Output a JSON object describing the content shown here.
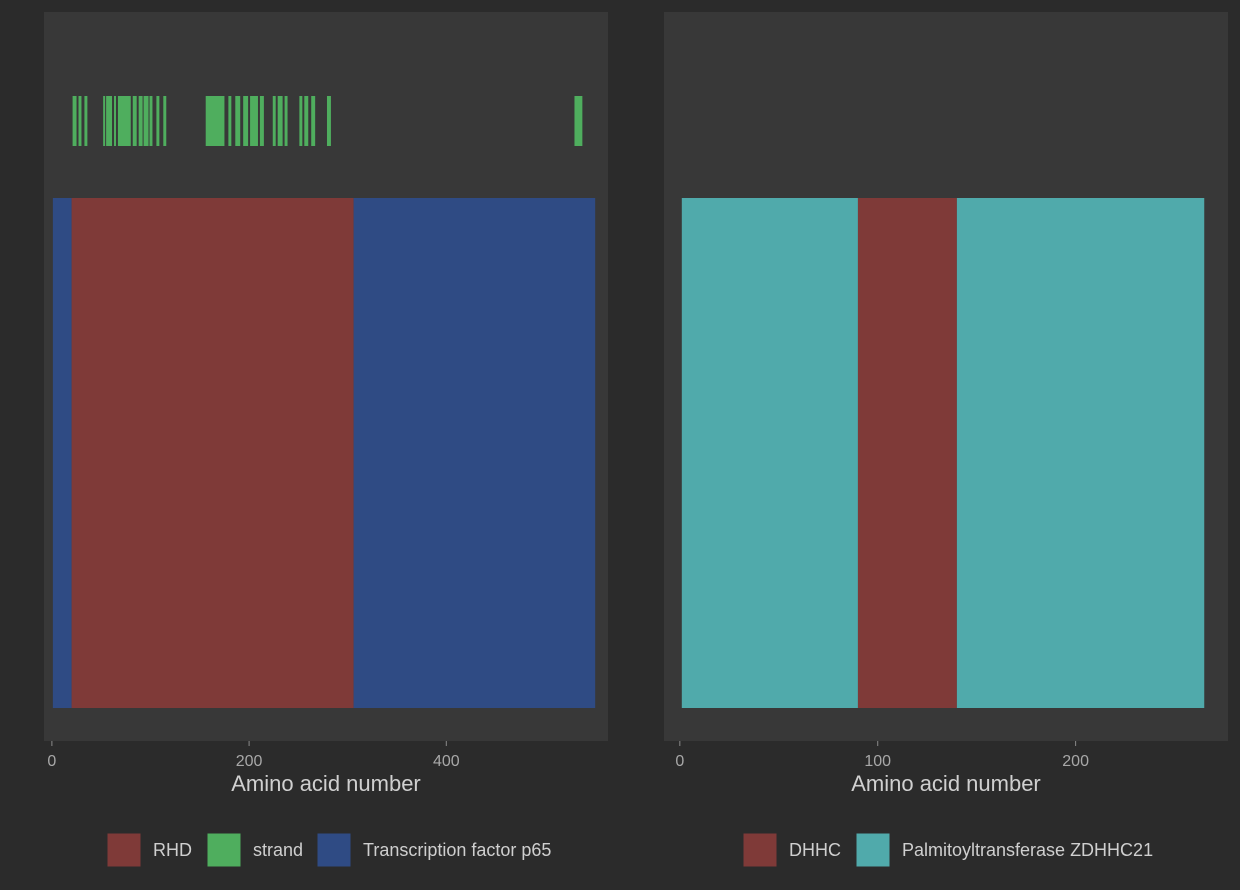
{
  "background": "#2b2b2b",
  "panel_color": "#383838",
  "chart_data": [
    {
      "type": "bar",
      "xlabel": "Amino acid number",
      "xlim": [
        -8,
        564
      ],
      "xticks": [
        0,
        200,
        400
      ],
      "grid": false,
      "legend_position": "bottom",
      "legend": [
        {
          "label": "RHD",
          "color": "#7f3a38"
        },
        {
          "label": "strand",
          "color": "#4fae5e"
        },
        {
          "label": "Transcription factor p65",
          "color": "#2f4b84"
        }
      ],
      "domains": [
        {
          "name": "Transcription factor p65",
          "start": 1,
          "end": 20,
          "color": "#2f4b84"
        },
        {
          "name": "RHD",
          "start": 20,
          "end": 306,
          "color": "#7f3a38"
        },
        {
          "name": "Transcription factor p65",
          "start": 306,
          "end": 551,
          "color": "#2f4b84"
        }
      ],
      "strands": [
        {
          "start": 21,
          "end": 25
        },
        {
          "start": 27,
          "end": 30
        },
        {
          "start": 33,
          "end": 36
        },
        {
          "start": 52,
          "end": 54
        },
        {
          "start": 55,
          "end": 61
        },
        {
          "start": 63,
          "end": 65
        },
        {
          "start": 67,
          "end": 80
        },
        {
          "start": 82,
          "end": 86
        },
        {
          "start": 88,
          "end": 92
        },
        {
          "start": 93,
          "end": 98
        },
        {
          "start": 99,
          "end": 102
        },
        {
          "start": 106,
          "end": 109
        },
        {
          "start": 113,
          "end": 116
        },
        {
          "start": 156,
          "end": 175
        },
        {
          "start": 179,
          "end": 182
        },
        {
          "start": 186,
          "end": 191
        },
        {
          "start": 194,
          "end": 199
        },
        {
          "start": 201,
          "end": 209
        },
        {
          "start": 211,
          "end": 215
        },
        {
          "start": 224,
          "end": 227
        },
        {
          "start": 229,
          "end": 234
        },
        {
          "start": 236,
          "end": 239
        },
        {
          "start": 251,
          "end": 254
        },
        {
          "start": 256,
          "end": 260
        },
        {
          "start": 263,
          "end": 267
        },
        {
          "start": 279,
          "end": 283
        },
        {
          "start": 530,
          "end": 538
        }
      ]
    },
    {
      "type": "bar",
      "xlabel": "Amino acid number",
      "xlim": [
        -8,
        277
      ],
      "xticks": [
        0,
        100,
        200
      ],
      "grid": false,
      "legend_position": "bottom",
      "legend": [
        {
          "label": "DHHC",
          "color": "#7f3a38"
        },
        {
          "label": "Palmitoyltransferase ZDHHC21",
          "color": "#50aaab"
        }
      ],
      "domains": [
        {
          "name": "Palmitoyltransferase ZDHHC21",
          "start": 1,
          "end": 90,
          "color": "#50aaab"
        },
        {
          "name": "DHHC",
          "start": 90,
          "end": 140,
          "color": "#7f3a38"
        },
        {
          "name": "Palmitoyltransferase ZDHHC21",
          "start": 140,
          "end": 265,
          "color": "#50aaab"
        }
      ],
      "strands": []
    }
  ]
}
